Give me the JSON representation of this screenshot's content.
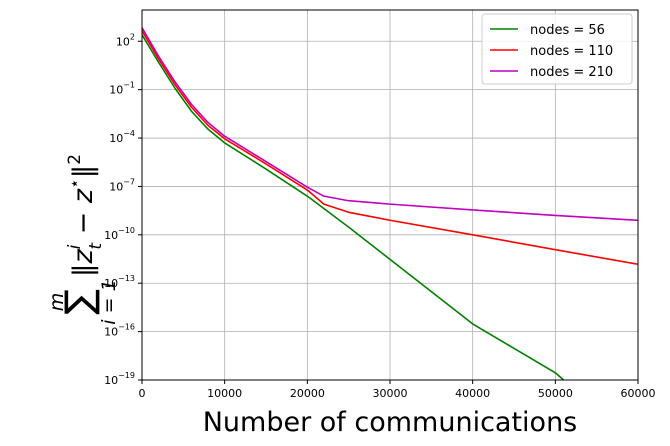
{
  "chart_data": {
    "type": "line",
    "xlabel": "Number of communications",
    "ylabel_math": {
      "sum_upper": "m",
      "sum_lower": "i = 1",
      "sum_symbol": "∑",
      "norm_open": "‖z",
      "sup": "i",
      "sub": "t",
      "minus_z": " − z",
      "star": "⋆",
      "norm_close": "‖",
      "power": "2"
    },
    "x_scale": "linear",
    "y_scale": "log",
    "xlim": [
      0,
      60000
    ],
    "ylim_exp": [
      -19,
      4
    ],
    "x_ticks": [
      0,
      10000,
      20000,
      30000,
      40000,
      50000,
      60000
    ],
    "x_tick_labels": [
      "0",
      "10000",
      "20000",
      "30000",
      "40000",
      "50000",
      "60000"
    ],
    "y_tick_exps": [
      -19,
      -16,
      -13,
      -10,
      -7,
      -4,
      -1,
      2
    ],
    "grid": true,
    "legend_position": "top-right",
    "series": [
      {
        "name": "nodes = 56",
        "color": "#008000",
        "points": [
          [
            0,
            250
          ],
          [
            2000,
            5
          ],
          [
            4000,
            0.12
          ],
          [
            6000,
            0.0045
          ],
          [
            8000,
            0.00035
          ],
          [
            10000,
            5e-05
          ],
          [
            15000,
            1.2e-06
          ],
          [
            20000,
            2.5e-08
          ],
          [
            25000,
            3e-10
          ],
          [
            30000,
            3e-12
          ],
          [
            40000,
            3e-16
          ],
          [
            50000,
            2.8e-19
          ],
          [
            51000,
            1e-19
          ]
        ]
      },
      {
        "name": "nodes = 110",
        "color": "#ff0000",
        "points": [
          [
            0,
            450
          ],
          [
            2000,
            8
          ],
          [
            4000,
            0.2
          ],
          [
            6000,
            0.008
          ],
          [
            8000,
            0.0006
          ],
          [
            10000,
            9e-05
          ],
          [
            15000,
            2.5e-06
          ],
          [
            20000,
            6e-08
          ],
          [
            22000,
            8e-09
          ],
          [
            25000,
            2.5e-09
          ],
          [
            30000,
            8e-10
          ],
          [
            40000,
            1e-10
          ],
          [
            50000,
            1.2e-11
          ],
          [
            60000,
            1.5e-12
          ]
        ]
      },
      {
        "name": "nodes = 210",
        "color": "#c000c0",
        "points": [
          [
            0,
            700
          ],
          [
            2000,
            12
          ],
          [
            4000,
            0.3
          ],
          [
            6000,
            0.012
          ],
          [
            8000,
            0.0009
          ],
          [
            10000,
            0.00013
          ],
          [
            15000,
            3.5e-06
          ],
          [
            20000,
            9e-08
          ],
          [
            22000,
            2.5e-08
          ],
          [
            25000,
            1.3e-08
          ],
          [
            30000,
            8e-09
          ],
          [
            40000,
            3.5e-09
          ],
          [
            50000,
            1.6e-09
          ],
          [
            60000,
            8e-10
          ]
        ]
      }
    ]
  }
}
